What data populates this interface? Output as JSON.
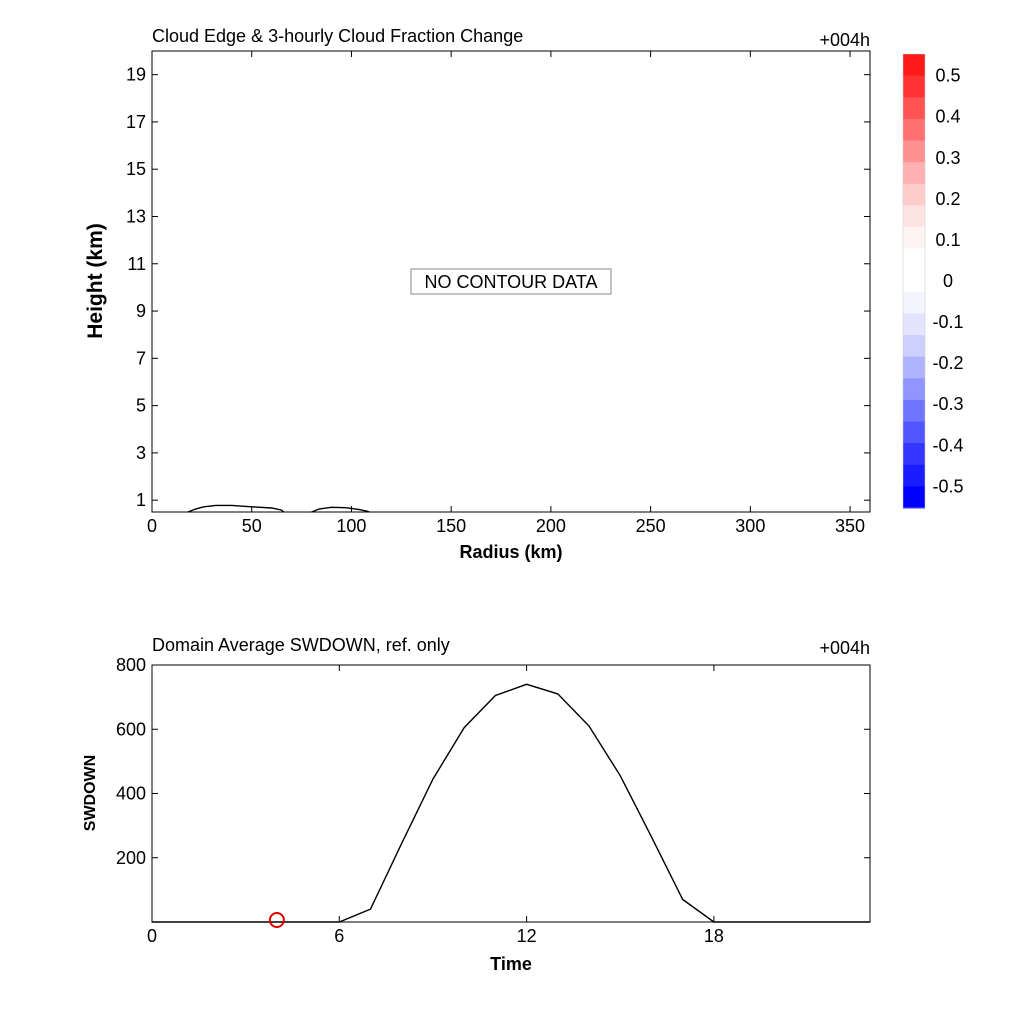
{
  "chart_data": [
    {
      "type": "contour",
      "title": "Cloud Edge & 3-hourly Cloud Fraction Change",
      "time_label": "+004h",
      "xlabel": "Radius (km)",
      "ylabel": "Height (km)",
      "xlim": [
        0,
        360
      ],
      "ylim": [
        0.5,
        20
      ],
      "xticks": [
        "0",
        "50",
        "100",
        "150",
        "200",
        "250",
        "300",
        "350"
      ],
      "yticks": [
        "1",
        "3",
        "5",
        "7",
        "9",
        "11",
        "13",
        "15",
        "17",
        "19"
      ],
      "annotation": "NO CONTOUR DATA",
      "cloud_edge": [
        {
          "x": [
            18,
            22,
            26,
            32,
            40,
            50,
            60,
            65,
            66
          ],
          "y": [
            0.5,
            0.63,
            0.72,
            0.78,
            0.78,
            0.72,
            0.67,
            0.58,
            0.5
          ]
        },
        {
          "x": [
            80,
            84,
            90,
            97,
            104,
            108,
            109
          ],
          "y": [
            0.5,
            0.63,
            0.7,
            0.68,
            0.6,
            0.53,
            0.5
          ]
        }
      ],
      "colorbar": {
        "labels": [
          "0.5",
          "0.4",
          "0.3",
          "0.2",
          "0.1",
          "0",
          "-0.1",
          "-0.2",
          "-0.3",
          "-0.4",
          "-0.5"
        ],
        "colors": [
          "#ff1a1a",
          "#ff3333",
          "#ff5252",
          "#ff7070",
          "#ff9090",
          "#ffb0b0",
          "#ffcccc",
          "#ffe4e4",
          "#fff4f4",
          "#ffffff",
          "#ffffff",
          "#f4f4ff",
          "#e4e4ff",
          "#cccfff",
          "#b0b4ff",
          "#9095ff",
          "#7075ff",
          "#5256ff",
          "#3336ff",
          "#1a1dff",
          "#0000ff"
        ]
      }
    },
    {
      "type": "line",
      "title": "Domain Average SWDOWN, ref. only",
      "time_label": "+004h",
      "xlabel": "Time",
      "ylabel": "SWDOWN",
      "xlim": [
        0,
        23
      ],
      "ylim": [
        0,
        800
      ],
      "xticks": [
        "0",
        "6",
        "12",
        "18"
      ],
      "yticks": [
        "200",
        "400",
        "600",
        "800"
      ],
      "x": [
        0,
        1,
        2,
        3,
        4,
        5,
        6,
        7,
        8,
        9,
        10,
        11,
        12,
        13,
        14,
        15,
        16,
        17,
        18,
        19,
        20,
        21,
        22,
        23
      ],
      "values": [
        0,
        0,
        0,
        0,
        0,
        0,
        0,
        40,
        245,
        445,
        605,
        705,
        740,
        710,
        610,
        455,
        265,
        70,
        0,
        0,
        0,
        0,
        0,
        0
      ],
      "marker": {
        "x": 4,
        "y": 0,
        "color": "#e00000"
      }
    }
  ]
}
